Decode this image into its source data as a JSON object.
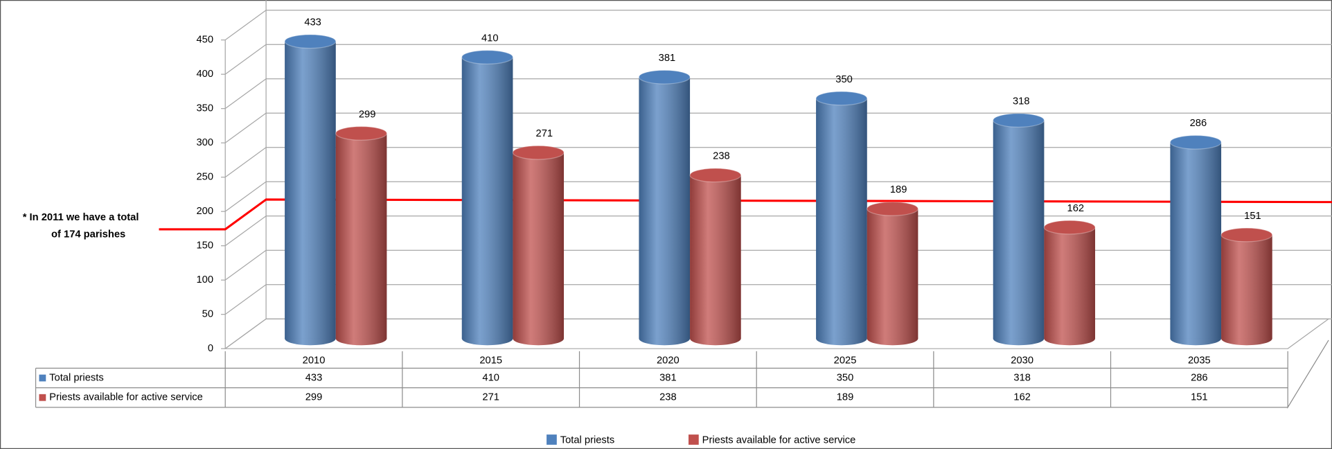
{
  "chart_data": {
    "type": "bar3d",
    "categories": [
      "2010",
      "2015",
      "2020",
      "2025",
      "2030",
      "2035"
    ],
    "series": [
      {
        "name": "Total priests",
        "color": "#4f81bd",
        "values": [
          433,
          410,
          381,
          350,
          318,
          286
        ]
      },
      {
        "name": "Priests available for active service",
        "color": "#c0504d",
        "values": [
          299,
          271,
          238,
          189,
          162,
          151
        ]
      }
    ],
    "ylim": [
      0,
      450
    ],
    "yticks": [
      0,
      50,
      100,
      150,
      200,
      250,
      300,
      350,
      400,
      450
    ],
    "grid": true,
    "annotation": {
      "lines": [
        "* In 2011 we have a total",
        "of 174 parishes"
      ],
      "value": 174,
      "color": "#ff0000"
    }
  }
}
